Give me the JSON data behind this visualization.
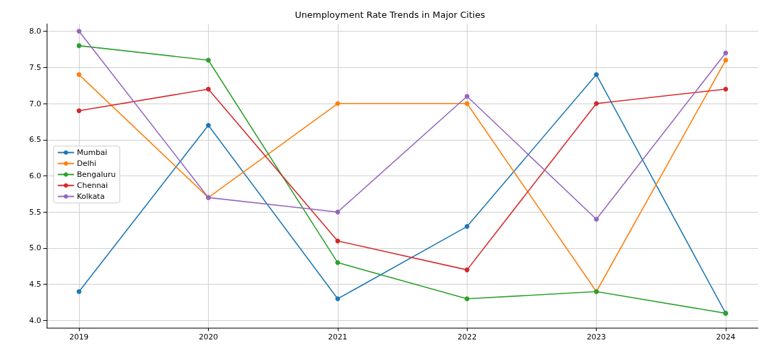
{
  "chart_data": {
    "type": "line",
    "title": "Unemployment Rate Trends in Major Cities",
    "x": [
      2019,
      2020,
      2021,
      2022,
      2023,
      2024
    ],
    "series": [
      {
        "name": "Mumbai",
        "color": "#1f77b4",
        "values": [
          4.4,
          6.7,
          4.3,
          5.3,
          7.4,
          4.1
        ]
      },
      {
        "name": "Delhi",
        "color": "#ff7f0e",
        "values": [
          7.4,
          5.7,
          7.0,
          7.0,
          4.4,
          7.6
        ]
      },
      {
        "name": "Bengaluru",
        "color": "#2ca02c",
        "values": [
          7.8,
          7.6,
          4.8,
          4.3,
          4.4,
          4.1
        ]
      },
      {
        "name": "Chennai",
        "color": "#d62728",
        "values": [
          6.9,
          7.2,
          5.1,
          4.7,
          7.0,
          7.2
        ]
      },
      {
        "name": "Kolkata",
        "color": "#9467bd",
        "values": [
          8.0,
          5.7,
          5.5,
          7.1,
          5.4,
          7.7
        ]
      }
    ],
    "xlim": [
      2018.75,
      2024.25
    ],
    "xticks": [
      2019,
      2020,
      2021,
      2022,
      2023,
      2024
    ],
    "ylim": [
      3.9,
      8.1
    ],
    "yticks": [
      {
        "value": 4,
        "label": "4.0"
      },
      {
        "value": 4.5,
        "label": "4.5"
      },
      {
        "value": 5,
        "label": "5.0"
      },
      {
        "value": 5.5,
        "label": "5.5"
      },
      {
        "value": 6,
        "label": "6.0"
      },
      {
        "value": 6.5,
        "label": "6.5"
      },
      {
        "value": 7,
        "label": "7.0"
      },
      {
        "value": 7.5,
        "label": "7.5"
      },
      {
        "value": 8,
        "label": "8.0"
      }
    ],
    "grid": true,
    "legend": "center left",
    "marker": "circle",
    "line_style": "solid"
  }
}
